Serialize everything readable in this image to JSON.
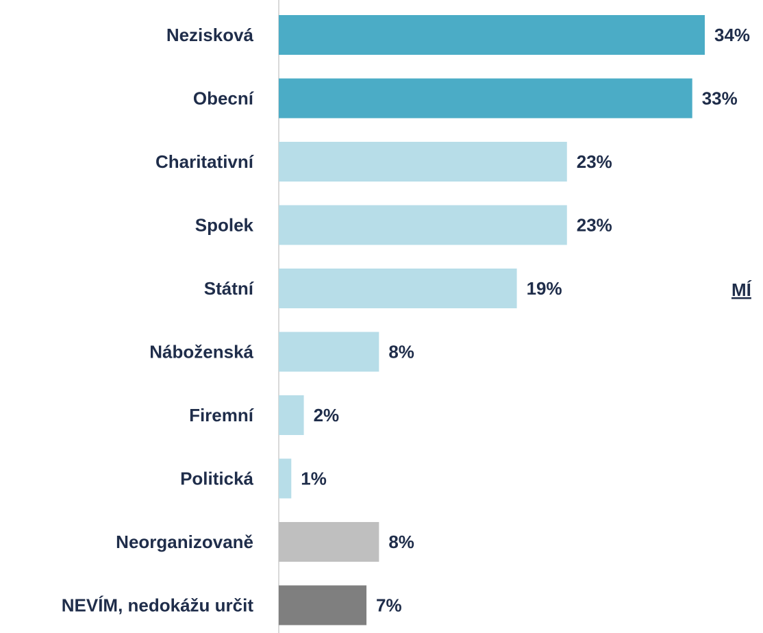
{
  "chart_data": {
    "type": "bar",
    "orientation": "horizontal",
    "categories": [
      "Nezisková",
      "Obecní",
      "Charitativní",
      "Spolek",
      "Státní",
      "Náboženská",
      "Firemní",
      "Politická",
      "Neorganizovaně",
      "NEVÍM, nedokážu určit"
    ],
    "values": [
      34,
      33,
      23,
      23,
      19,
      8,
      2,
      1,
      8,
      7
    ],
    "value_labels": [
      "34%",
      "33%",
      "23%",
      "23%",
      "19%",
      "8%",
      "2%",
      "1%",
      "8%",
      "7%"
    ],
    "colors": [
      "#4bacc6",
      "#4bacc6",
      "#b7dde8",
      "#b7dde8",
      "#b7dde8",
      "#b7dde8",
      "#b7dde8",
      "#b7dde8",
      "#bfbfbf",
      "#7f7f7f"
    ],
    "xlim": [
      0,
      34
    ],
    "annotation": "MÍ"
  }
}
